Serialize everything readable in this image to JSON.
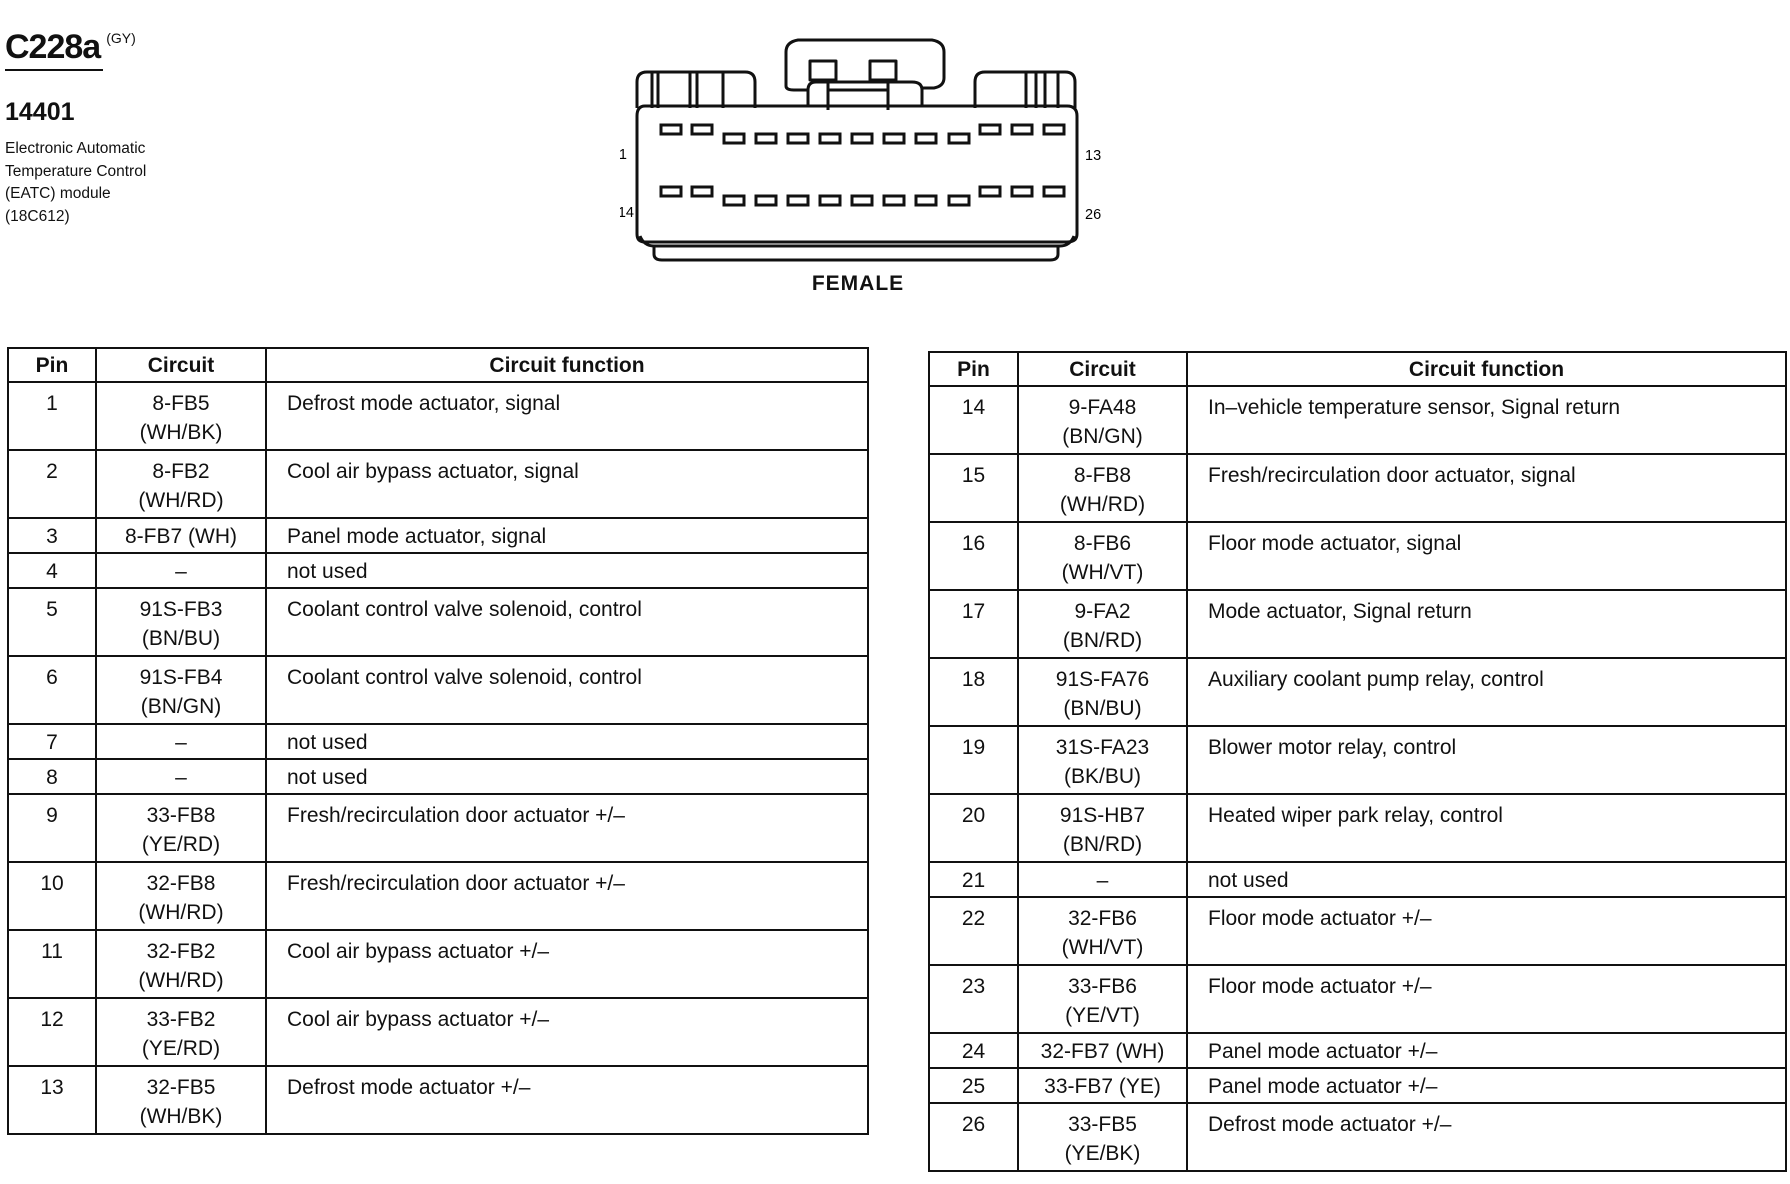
{
  "header": {
    "connector_id": "C228a",
    "color_code": "(GY)",
    "part_number": "14401",
    "description_lines": [
      "Electronic Automatic",
      "Temperature Control",
      "(EATC) module",
      "(18C612)"
    ]
  },
  "connector": {
    "gender_label": "FEMALE",
    "pin_labels": {
      "top_left": "1",
      "top_right": "13",
      "bottom_left": "14",
      "bottom_right": "26"
    }
  },
  "table_headers": {
    "pin": "Pin",
    "circuit": "Circuit",
    "function": "Circuit function"
  },
  "left_table": [
    {
      "pin": "1",
      "circuit": [
        "8-FB5",
        "(WH/BK)"
      ],
      "function": "Defrost mode actuator, signal"
    },
    {
      "pin": "2",
      "circuit": [
        "8-FB2",
        "(WH/RD)"
      ],
      "function": "Cool air bypass actuator, signal"
    },
    {
      "pin": "3",
      "circuit": [
        "8-FB7 (WH)"
      ],
      "function": "Panel mode actuator, signal"
    },
    {
      "pin": "4",
      "circuit": [
        "–"
      ],
      "function": "not used"
    },
    {
      "pin": "5",
      "circuit": [
        "91S-FB3",
        "(BN/BU)"
      ],
      "function": "Coolant control valve solenoid, control"
    },
    {
      "pin": "6",
      "circuit": [
        "91S-FB4",
        "(BN/GN)"
      ],
      "function": "Coolant control valve solenoid, control"
    },
    {
      "pin": "7",
      "circuit": [
        "–"
      ],
      "function": "not used"
    },
    {
      "pin": "8",
      "circuit": [
        "–"
      ],
      "function": "not used"
    },
    {
      "pin": "9",
      "circuit": [
        "33-FB8",
        "(YE/RD)"
      ],
      "function": "Fresh/recirculation door actuator  +/–"
    },
    {
      "pin": "10",
      "circuit": [
        "32-FB8",
        "(WH/RD)"
      ],
      "function": "Fresh/recirculation door actuator  +/–"
    },
    {
      "pin": "11",
      "circuit": [
        "32-FB2",
        "(WH/RD)"
      ],
      "function": "Cool air bypass actuator  +/–"
    },
    {
      "pin": "12",
      "circuit": [
        "33-FB2",
        "(YE/RD)"
      ],
      "function": "Cool air bypass actuator  +/–"
    },
    {
      "pin": "13",
      "circuit": [
        "32-FB5",
        "(WH/BK)"
      ],
      "function": "Defrost mode actuator  +/–"
    }
  ],
  "right_table": [
    {
      "pin": "14",
      "circuit": [
        "9-FA48",
        "(BN/GN)"
      ],
      "function": "In–vehicle temperature sensor, Signal return"
    },
    {
      "pin": "15",
      "circuit": [
        "8-FB8",
        "(WH/RD)"
      ],
      "function": "Fresh/recirculation door actuator, signal"
    },
    {
      "pin": "16",
      "circuit": [
        "8-FB6",
        "(WH/VT)"
      ],
      "function": "Floor mode actuator, signal"
    },
    {
      "pin": "17",
      "circuit": [
        "9-FA2",
        "(BN/RD)"
      ],
      "function": "Mode actuator, Signal return"
    },
    {
      "pin": "18",
      "circuit": [
        "91S-FA76",
        "(BN/BU)"
      ],
      "function": "Auxiliary coolant pump relay, control"
    },
    {
      "pin": "19",
      "circuit": [
        "31S-FA23",
        "(BK/BU)"
      ],
      "function": "Blower motor relay, control"
    },
    {
      "pin": "20",
      "circuit": [
        "91S-HB7",
        "(BN/RD)"
      ],
      "function": "Heated wiper park relay, control"
    },
    {
      "pin": "21",
      "circuit": [
        "–"
      ],
      "function": "not used"
    },
    {
      "pin": "22",
      "circuit": [
        "32-FB6",
        "(WH/VT)"
      ],
      "function": "Floor mode actuator  +/–"
    },
    {
      "pin": "23",
      "circuit": [
        "33-FB6",
        "(YE/VT)"
      ],
      "function": "Floor mode actuator  +/–"
    },
    {
      "pin": "24",
      "circuit": [
        "32-FB7 (WH)"
      ],
      "function": "Panel mode actuator  +/–"
    },
    {
      "pin": "25",
      "circuit": [
        "33-FB7 (YE)"
      ],
      "function": "Panel mode actuator  +/–"
    },
    {
      "pin": "26",
      "circuit": [
        "33-FB5",
        "(YE/BK)"
      ],
      "function": "Defrost mode actuator  +/–"
    }
  ]
}
